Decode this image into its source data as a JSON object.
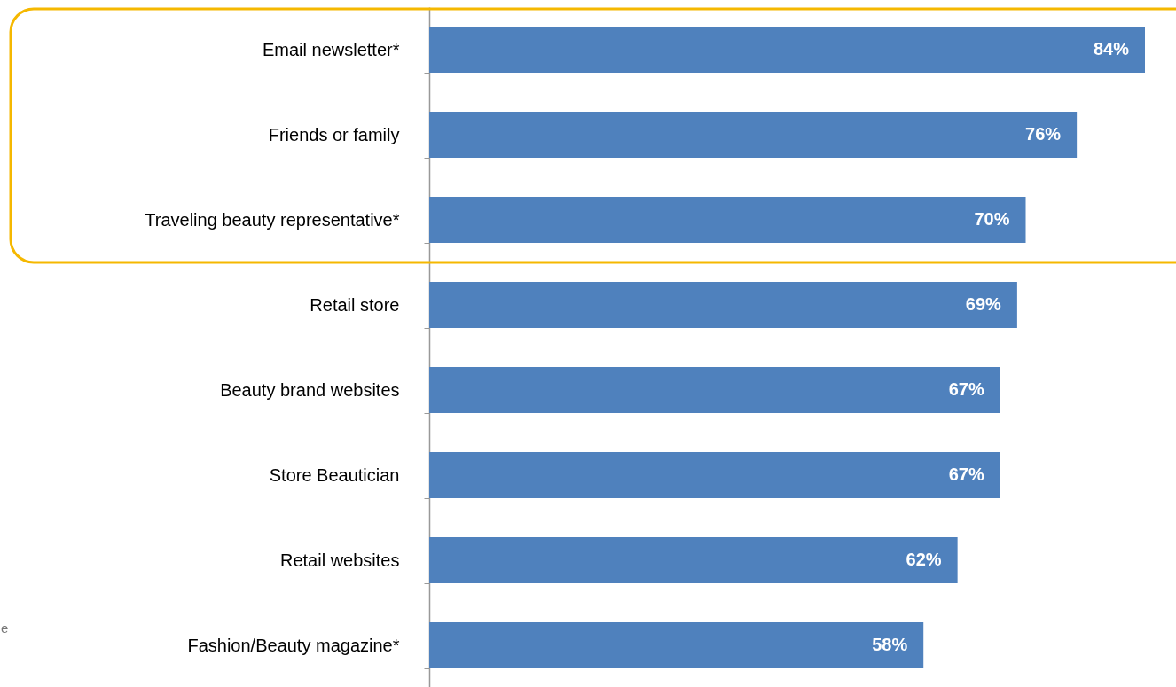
{
  "chart_data": {
    "type": "bar",
    "orientation": "horizontal",
    "categories": [
      "Email newsletter*",
      "Friends or family",
      "Traveling beauty representative*",
      "Retail store",
      "Beauty brand websites",
      "Store Beautician",
      "Retail websites",
      "Fashion/Beauty magazine*"
    ],
    "values": [
      84,
      76,
      70,
      69,
      67,
      67,
      62,
      58
    ],
    "value_labels": [
      "84%",
      "76%",
      "70%",
      "69%",
      "67%",
      "67%",
      "62%",
      "58%"
    ],
    "color": "#4f81bd",
    "tick_labels": "y",
    "annotations": [
      "e"
    ]
  }
}
